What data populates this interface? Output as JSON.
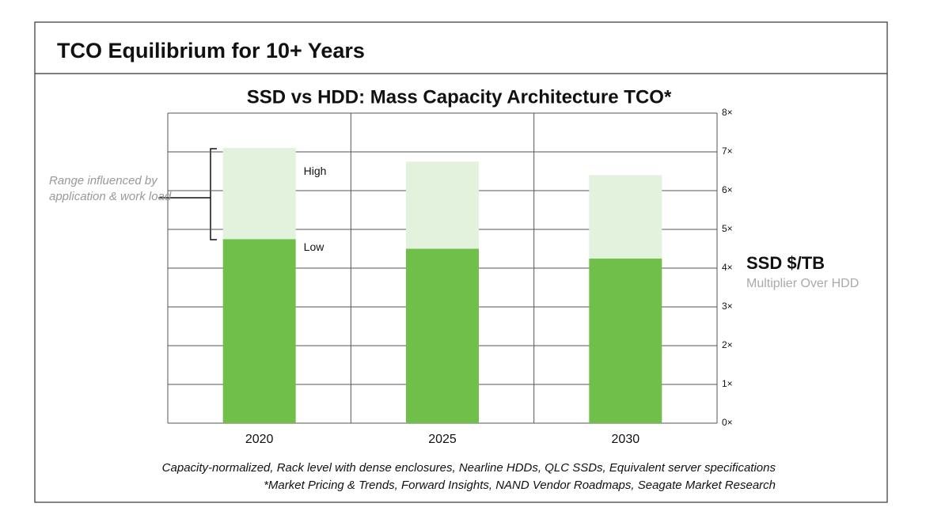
{
  "header": {
    "title": "TCO Equilibrium for 10+ Years"
  },
  "chart_data": {
    "type": "stacked_bar",
    "title": "SSD vs HDD: Mass Capacity Architecture TCO*",
    "categories": [
      "2020",
      "2025",
      "2030"
    ],
    "series": [
      {
        "name": "Low",
        "color": "#70bf4a",
        "values": [
          4.75,
          4.5,
          4.25
        ]
      },
      {
        "name": "High",
        "color": "#e2f2dd",
        "values": [
          2.35,
          2.25,
          2.15
        ]
      }
    ],
    "ylim": [
      0,
      8
    ],
    "yticks": [
      {
        "value": 0,
        "label": "0×"
      },
      {
        "value": 1,
        "label": "1×"
      },
      {
        "value": 2,
        "label": "2×"
      },
      {
        "value": 3,
        "label": "3×"
      },
      {
        "value": 4,
        "label": "4×"
      },
      {
        "value": 5,
        "label": "5×"
      },
      {
        "value": 6,
        "label": "6×"
      },
      {
        "value": 7,
        "label": "7×"
      },
      {
        "value": 8,
        "label": "8×"
      }
    ],
    "grid": true,
    "y_axis_title": "SSD $/TB",
    "y_axis_subtitle": "Multiplier Over HDD",
    "annotation": "Range influenced by application & work load"
  },
  "footnotes": [
    "Capacity-normalized, Rack level with dense enclosures, Nearline HDDs, QLC SSDs, Equivalent server specifications",
    "*Market Pricing & Trends, Forward Insights, NAND Vendor Roadmaps, Seagate Market Research"
  ]
}
